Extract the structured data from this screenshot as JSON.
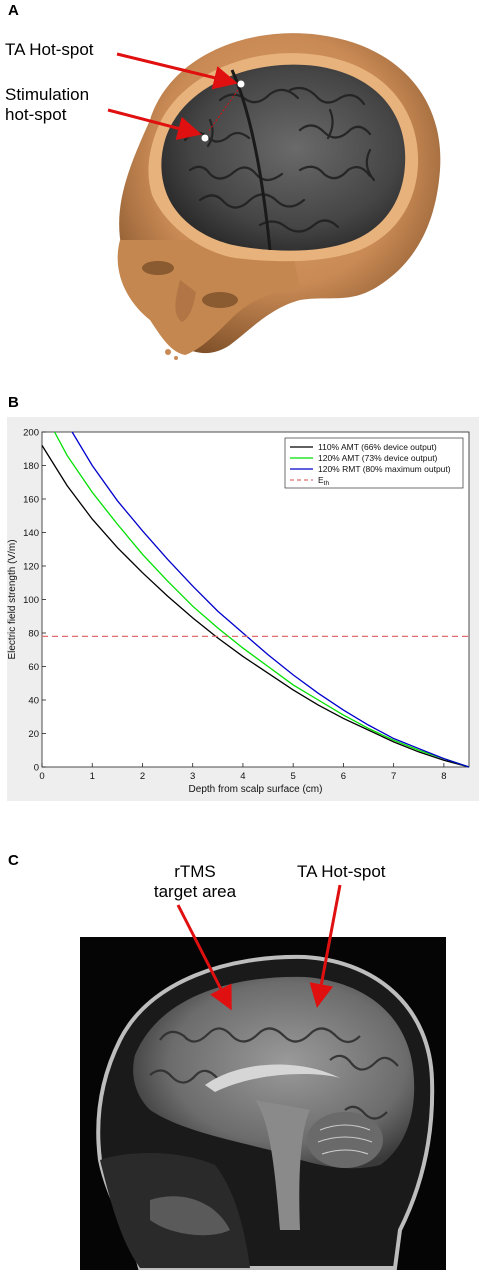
{
  "panels": {
    "a": {
      "letter": "A",
      "label_ta": "TA Hot-spot",
      "label_stim_line1": "Stimulation",
      "label_stim_line2": "hot-spot"
    },
    "b": {
      "letter": "B"
    },
    "c": {
      "letter": "C",
      "label_rtms_line1": "rTMS",
      "label_rtms_line2": "target area",
      "label_ta": "TA Hot-spot"
    }
  },
  "colors": {
    "arrow": "#e01010",
    "skin": "#c98a55",
    "brain": "#4a4a4a",
    "mri_bg": "#050505"
  },
  "chart_data": {
    "type": "line",
    "xlabel": "Depth from scalp surface (cm)",
    "ylabel": "Electric field strength (V/m)",
    "xlim": [
      0,
      8.5
    ],
    "ylim": [
      0,
      200
    ],
    "xticks": [
      "0",
      "1",
      "2",
      "3",
      "4",
      "5",
      "6",
      "7",
      "8"
    ],
    "yticks": [
      "0",
      "20",
      "40",
      "60",
      "80",
      "100",
      "120",
      "140",
      "160",
      "180",
      "200"
    ],
    "legend_position": "top-right",
    "grid": false,
    "series": [
      {
        "name": "110% AMT (66% device output)",
        "color": "#000000",
        "x": [
          0,
          0.5,
          1,
          1.5,
          2,
          2.5,
          3,
          3.5,
          4,
          4.5,
          5,
          5.5,
          6,
          6.5,
          7,
          7.5,
          8,
          8.5
        ],
        "y": [
          192,
          168,
          148,
          131,
          116,
          102,
          89,
          77,
          66,
          56,
          46,
          37,
          29,
          22,
          15,
          9,
          4,
          0
        ]
      },
      {
        "name": "120% AMT (73% device output)",
        "color": "#00e000",
        "x": [
          0.25,
          0.5,
          1,
          1.5,
          2,
          2.5,
          3,
          3.5,
          4,
          4.5,
          5,
          5.5,
          6,
          6.5,
          7,
          7.5,
          8,
          8.5
        ],
        "y": [
          200,
          186,
          164,
          145,
          127,
          111,
          96,
          83,
          71,
          60,
          49,
          40,
          31,
          23,
          16,
          10,
          5,
          0
        ]
      },
      {
        "name": "120% RMT (80% maximum output)",
        "color": "#0000cc",
        "x": [
          0.6,
          1,
          1.5,
          2,
          2.5,
          3,
          3.5,
          4,
          4.5,
          5,
          5.5,
          6,
          6.5,
          7,
          7.5,
          8,
          8.5
        ],
        "y": [
          200,
          180,
          159,
          141,
          124,
          108,
          93,
          80,
          67,
          55,
          44,
          34,
          25,
          17,
          11,
          5,
          0
        ]
      },
      {
        "name": "E",
        "name_subscript": "th",
        "color": "#e07070",
        "dashed": true,
        "x": [
          0,
          8.5
        ],
        "y": [
          78,
          78
        ]
      }
    ]
  }
}
